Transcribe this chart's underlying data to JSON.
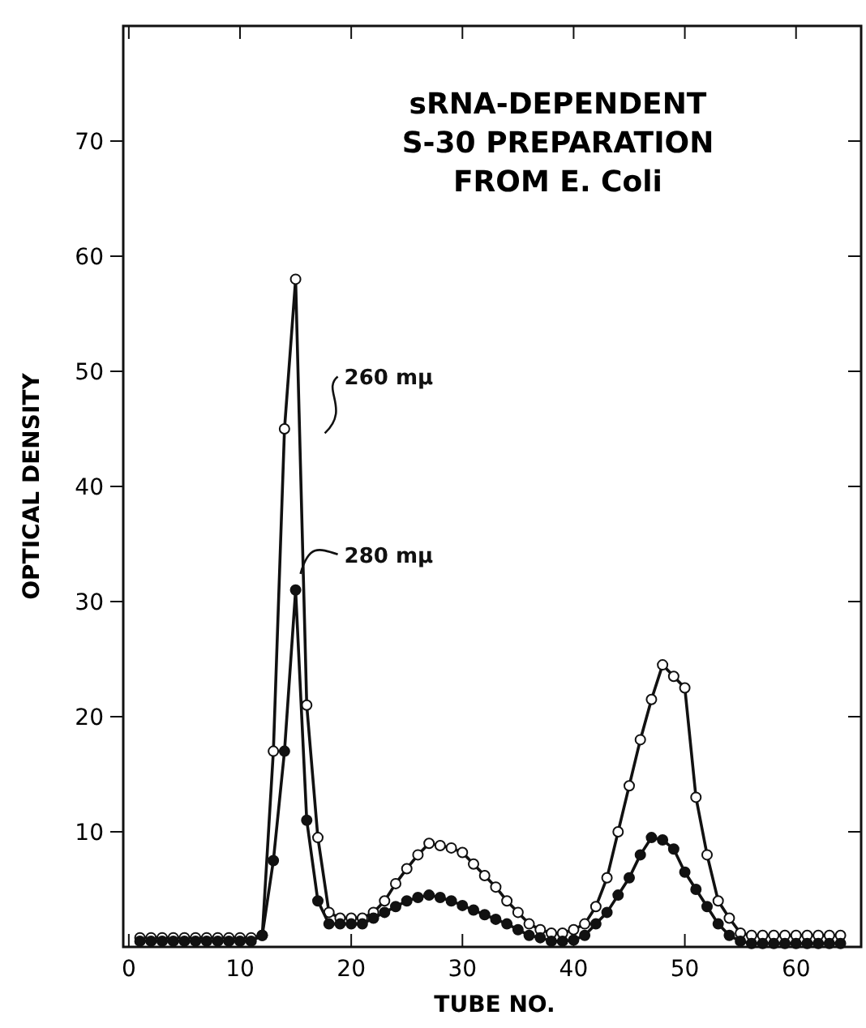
{
  "chart_data": {
    "type": "line",
    "title": "sRNA-DEPENDENT\nS-30 PREPARATION\nFROM E. Coli",
    "xlabel": "TUBE NO.",
    "ylabel": "OPTICAL DENSITY",
    "x": [
      1,
      2,
      3,
      4,
      5,
      6,
      7,
      8,
      9,
      10,
      11,
      12,
      13,
      14,
      15,
      16,
      17,
      18,
      19,
      20,
      21,
      22,
      23,
      24,
      25,
      26,
      27,
      28,
      29,
      30,
      31,
      32,
      33,
      34,
      35,
      36,
      37,
      38,
      39,
      40,
      41,
      42,
      43,
      44,
      45,
      46,
      47,
      48,
      49,
      50,
      51,
      52,
      53,
      54,
      55,
      56,
      57,
      58,
      59,
      60,
      61,
      62,
      63,
      64
    ],
    "series": [
      {
        "name": "260 mμ",
        "color": "#111111",
        "values": [
          0.8,
          0.8,
          0.8,
          0.8,
          0.8,
          0.8,
          0.8,
          0.8,
          0.8,
          0.8,
          0.8,
          1,
          17,
          45,
          58,
          21,
          9.5,
          3,
          2.5,
          2.5,
          2.5,
          3,
          4,
          5.5,
          6.8,
          8,
          9,
          8.8,
          8.6,
          8.2,
          7.2,
          6.2,
          5.2,
          4,
          3,
          2,
          1.5,
          1.2,
          1.2,
          1.5,
          2,
          3.5,
          6,
          10,
          14,
          18,
          21.5,
          24.5,
          23.5,
          22.5,
          13,
          8,
          4,
          2.5,
          1.2,
          1,
          1,
          1,
          1,
          1,
          1,
          1,
          1,
          1
        ]
      },
      {
        "name": "280 mμ",
        "color": "#111111",
        "values": [
          0.5,
          0.5,
          0.5,
          0.5,
          0.5,
          0.5,
          0.5,
          0.5,
          0.5,
          0.5,
          0.5,
          1,
          7.5,
          17,
          31,
          11,
          4,
          2,
          2,
          2,
          2,
          2.5,
          3,
          3.5,
          4,
          4.3,
          4.5,
          4.3,
          4,
          3.6,
          3.2,
          2.8,
          2.4,
          2,
          1.5,
          1,
          0.8,
          0.5,
          0.5,
          0.6,
          1,
          2,
          3,
          4.5,
          6,
          8,
          9.5,
          9.3,
          8.5,
          6.5,
          5,
          3.5,
          2,
          1,
          0.5,
          0.3,
          0.3,
          0.3,
          0.3,
          0.3,
          0.3,
          0.3,
          0.3,
          0.3
        ]
      }
    ],
    "xlim": [
      -0.5,
      66
    ],
    "ylim": [
      0,
      80
    ],
    "xticks": [
      0,
      10,
      20,
      30,
      40,
      50,
      60
    ],
    "yticks": [
      10,
      20,
      30,
      40,
      50,
      60,
      70
    ],
    "marker": "circle",
    "grid": false
  }
}
